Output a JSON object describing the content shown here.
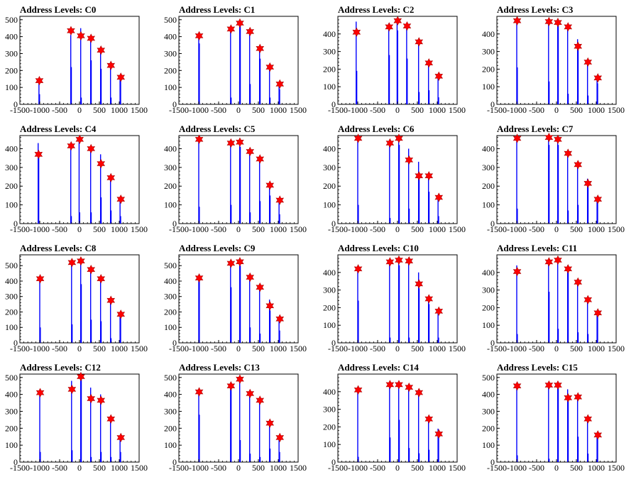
{
  "figure": {
    "colors": {
      "bar": "#0000ff",
      "marker": "#ff0000",
      "axis": "#000000"
    }
  },
  "chart_data": [
    {
      "type": "bar",
      "title": "Address Levels: C0",
      "xlim": [
        -1500,
        1500
      ],
      "ylim": [
        0,
        520
      ],
      "yticks": [
        0,
        100,
        200,
        300,
        400,
        500
      ],
      "xticks": [
        -1500,
        -1000,
        -500,
        0,
        500,
        1000,
        1500
      ],
      "x": [
        -1020,
        -1005,
        -220,
        -205,
        30,
        45,
        280,
        295,
        530,
        545,
        780,
        795,
        1020,
        1035
      ],
      "values": [
        150,
        60,
        410,
        220,
        450,
        40,
        400,
        260,
        340,
        210,
        230,
        40,
        170,
        150
      ],
      "markers": {
        "x": [
          -1010,
          -215,
          35,
          290,
          540,
          790,
          1040
        ],
        "y": [
          140,
          435,
          405,
          390,
          320,
          230,
          160
        ]
      }
    },
    {
      "type": "bar",
      "title": "Address Levels: C1",
      "xlim": [
        -1500,
        1500
      ],
      "ylim": [
        0,
        520
      ],
      "yticks": [
        0,
        100,
        200,
        300,
        400,
        500
      ],
      "xticks": [
        -1500,
        -1000,
        -500,
        0,
        500,
        1000,
        1500
      ],
      "x": [
        -1000,
        -985,
        -200,
        -185,
        30,
        45,
        280,
        295,
        530,
        545,
        780,
        795,
        1020,
        1035
      ],
      "values": [
        410,
        360,
        450,
        40,
        500,
        480,
        430,
        120,
        340,
        270,
        220,
        40,
        130,
        90
      ],
      "markers": {
        "x": [
          -990,
          -190,
          35,
          290,
          540,
          790,
          1040
        ],
        "y": [
          405,
          445,
          480,
          430,
          330,
          220,
          120
        ]
      }
    },
    {
      "type": "bar",
      "title": "Address Levels: C2",
      "xlim": [
        -1500,
        1500
      ],
      "ylim": [
        0,
        500
      ],
      "yticks": [
        0,
        100,
        200,
        300,
        400
      ],
      "xticks": [
        -1500,
        -1000,
        -500,
        0,
        500,
        1000,
        1500
      ],
      "x": [
        -1040,
        -1025,
        -220,
        -205,
        -10,
        5,
        230,
        245,
        530,
        545,
        780,
        795,
        1020,
        1035
      ],
      "values": [
        470,
        190,
        460,
        280,
        490,
        420,
        450,
        260,
        360,
        70,
        230,
        80,
        160,
        40
      ],
      "markers": {
        "x": [
          -1030,
          -210,
          5,
          240,
          540,
          790,
          1040
        ],
        "y": [
          410,
          440,
          475,
          445,
          355,
          235,
          160
        ]
      }
    },
    {
      "type": "bar",
      "title": "Address Levels: C3",
      "xlim": [
        -1500,
        1500
      ],
      "ylim": [
        0,
        500
      ],
      "yticks": [
        0,
        100,
        200,
        300,
        400
      ],
      "xticks": [
        -1500,
        -1000,
        -500,
        0,
        500,
        1000,
        1500
      ],
      "x": [
        -1000,
        -985,
        -200,
        -185,
        30,
        45,
        280,
        295,
        530,
        545,
        780,
        795,
        1020,
        1035
      ],
      "values": [
        480,
        210,
        470,
        130,
        480,
        460,
        450,
        60,
        370,
        310,
        240,
        50,
        150,
        120
      ],
      "markers": {
        "x": [
          -990,
          -190,
          35,
          290,
          540,
          790,
          1040
        ],
        "y": [
          475,
          470,
          465,
          440,
          330,
          240,
          150
        ]
      }
    },
    {
      "type": "bar",
      "title": "Address Levels: C4",
      "xlim": [
        -1500,
        1500
      ],
      "ylim": [
        0,
        470
      ],
      "yticks": [
        0,
        100,
        200,
        300,
        400
      ],
      "xticks": [
        -1500,
        -1000,
        -500,
        0,
        500,
        1000,
        1500
      ],
      "x": [
        -1040,
        -1025,
        -220,
        -205,
        -10,
        5,
        280,
        295,
        530,
        545,
        780,
        795,
        1020,
        1035
      ],
      "values": [
        430,
        360,
        420,
        40,
        450,
        60,
        410,
        60,
        370,
        140,
        250,
        70,
        130,
        40
      ],
      "markers": {
        "x": [
          -1030,
          -210,
          5,
          290,
          540,
          790,
          1040
        ],
        "y": [
          370,
          415,
          450,
          400,
          320,
          245,
          130
        ]
      }
    },
    {
      "type": "bar",
      "title": "Address Levels: C5",
      "xlim": [
        -1500,
        1500
      ],
      "ylim": [
        0,
        470
      ],
      "yticks": [
        0,
        100,
        200,
        300,
        400
      ],
      "xticks": [
        -1500,
        -1000,
        -500,
        0,
        500,
        1000,
        1500
      ],
      "x": [
        -1000,
        -985,
        -200,
        -185,
        30,
        45,
        280,
        295,
        530,
        545,
        780,
        795,
        1020,
        1035
      ],
      "values": [
        460,
        90,
        440,
        100,
        440,
        410,
        390,
        60,
        350,
        120,
        200,
        150,
        130,
        50
      ],
      "markers": {
        "x": [
          -990,
          -190,
          35,
          290,
          540,
          790,
          1040
        ],
        "y": [
          450,
          430,
          435,
          385,
          345,
          205,
          125
        ]
      }
    },
    {
      "type": "bar",
      "title": "Address Levels: C6",
      "xlim": [
        -1500,
        1500
      ],
      "ylim": [
        0,
        470
      ],
      "yticks": [
        0,
        100,
        200,
        300,
        400
      ],
      "xticks": [
        -1500,
        -1000,
        -500,
        0,
        500,
        1000,
        1500
      ],
      "x": [
        -1000,
        -985,
        -200,
        -185,
        30,
        45,
        280,
        295,
        530,
        545,
        780,
        795,
        1020,
        1035
      ],
      "values": [
        460,
        100,
        440,
        30,
        460,
        420,
        400,
        80,
        330,
        250,
        260,
        170,
        140,
        40
      ],
      "markers": {
        "x": [
          -990,
          -190,
          35,
          290,
          540,
          790,
          1040
        ],
        "y": [
          455,
          430,
          455,
          340,
          255,
          255,
          140
        ]
      }
    },
    {
      "type": "bar",
      "title": "Address Levels: C7",
      "xlim": [
        -1500,
        1500
      ],
      "ylim": [
        0,
        470
      ],
      "yticks": [
        0,
        100,
        200,
        300,
        400
      ],
      "xticks": [
        -1500,
        -1000,
        -500,
        0,
        500,
        1000,
        1500
      ],
      "x": [
        -1000,
        -985,
        -200,
        -185,
        30,
        45,
        280,
        295,
        530,
        545,
        780,
        795,
        1020,
        1035
      ],
      "values": [
        460,
        80,
        460,
        420,
        440,
        420,
        380,
        70,
        320,
        100,
        240,
        220,
        130,
        110
      ],
      "markers": {
        "x": [
          -990,
          -190,
          35,
          290,
          540,
          790,
          1040
        ],
        "y": [
          455,
          460,
          450,
          375,
          315,
          215,
          130
        ]
      }
    },
    {
      "type": "bar",
      "title": "Address Levels: C8",
      "xlim": [
        -1500,
        1500
      ],
      "ylim": [
        0,
        570
      ],
      "yticks": [
        0,
        100,
        200,
        300,
        400,
        500
      ],
      "xticks": [
        -1500,
        -1000,
        -500,
        0,
        500,
        1000,
        1500
      ],
      "x": [
        -1000,
        -985,
        -200,
        -185,
        30,
        45,
        280,
        295,
        530,
        545,
        780,
        795,
        1020,
        1035
      ],
      "values": [
        430,
        100,
        530,
        120,
        540,
        380,
        480,
        150,
        420,
        140,
        280,
        30,
        190,
        160
      ],
      "markers": {
        "x": [
          -990,
          -190,
          35,
          290,
          540,
          790,
          1040
        ],
        "y": [
          415,
          520,
          530,
          475,
          415,
          275,
          185
        ]
      }
    },
    {
      "type": "bar",
      "title": "Address Levels: C9",
      "xlim": [
        -1500,
        1500
      ],
      "ylim": [
        0,
        570
      ],
      "yticks": [
        0,
        100,
        200,
        300,
        400,
        500
      ],
      "xticks": [
        -1500,
        -1000,
        -500,
        0,
        500,
        1000,
        1500
      ],
      "x": [
        -1000,
        -985,
        -200,
        -185,
        30,
        45,
        280,
        295,
        530,
        545,
        780,
        795,
        1020,
        1035
      ],
      "values": [
        430,
        410,
        520,
        360,
        530,
        500,
        440,
        100,
        370,
        60,
        280,
        210,
        160,
        80
      ],
      "markers": {
        "x": [
          -990,
          -190,
          35,
          290,
          540,
          790,
          1040
        ],
        "y": [
          420,
          515,
          525,
          425,
          360,
          240,
          155
        ]
      }
    },
    {
      "type": "bar",
      "title": "Address Levels: C10",
      "xlim": [
        -1500,
        1500
      ],
      "ylim": [
        0,
        500
      ],
      "yticks": [
        0,
        100,
        200,
        300,
        400
      ],
      "xticks": [
        -1500,
        -1000,
        -500,
        0,
        500,
        1000,
        1500
      ],
      "x": [
        -1000,
        -985,
        -200,
        -185,
        30,
        45,
        280,
        295,
        530,
        545,
        780,
        795,
        1020,
        1035
      ],
      "values": [
        420,
        240,
        460,
        30,
        480,
        440,
        460,
        30,
        400,
        310,
        250,
        220,
        180,
        30
      ],
      "markers": {
        "x": [
          -990,
          -190,
          35,
          290,
          540,
          790,
          1040
        ],
        "y": [
          420,
          460,
          470,
          465,
          335,
          250,
          180
        ]
      }
    },
    {
      "type": "bar",
      "title": "Address Levels: C11",
      "xlim": [
        -1500,
        1500
      ],
      "ylim": [
        0,
        500
      ],
      "yticks": [
        0,
        100,
        200,
        300,
        400
      ],
      "xticks": [
        -1500,
        -1000,
        -500,
        0,
        500,
        1000,
        1500
      ],
      "x": [
        -1000,
        -985,
        -200,
        -185,
        30,
        45,
        280,
        295,
        530,
        545,
        780,
        795,
        1020,
        1035
      ],
      "values": [
        440,
        50,
        470,
        290,
        480,
        80,
        440,
        420,
        350,
        60,
        260,
        50,
        170,
        150
      ],
      "markers": {
        "x": [
          -990,
          -190,
          35,
          290,
          540,
          790,
          1040
        ],
        "y": [
          405,
          460,
          470,
          420,
          345,
          245,
          170
        ]
      }
    },
    {
      "type": "bar",
      "title": "Address Levels: C12",
      "xlim": [
        -1500,
        1500
      ],
      "ylim": [
        0,
        520
      ],
      "yticks": [
        0,
        100,
        200,
        300,
        400,
        500
      ],
      "xticks": [
        -1500,
        -1000,
        -500,
        0,
        500,
        1000,
        1500
      ],
      "x": [
        -1000,
        -985,
        -200,
        -185,
        30,
        45,
        280,
        295,
        530,
        545,
        780,
        795,
        1020,
        1035
      ],
      "values": [
        420,
        60,
        480,
        70,
        510,
        490,
        440,
        30,
        400,
        60,
        260,
        30,
        150,
        60
      ],
      "markers": {
        "x": [
          -990,
          -190,
          35,
          290,
          540,
          790,
          1040
        ],
        "y": [
          410,
          430,
          505,
          375,
          365,
          255,
          145
        ]
      }
    },
    {
      "type": "bar",
      "title": "Address Levels: C13",
      "xlim": [
        -1500,
        1500
      ],
      "ylim": [
        0,
        520
      ],
      "yticks": [
        0,
        100,
        200,
        300,
        400,
        500
      ],
      "xticks": [
        -1500,
        -1000,
        -500,
        0,
        500,
        1000,
        1500
      ],
      "x": [
        -1000,
        -985,
        -200,
        -185,
        30,
        45,
        280,
        295,
        530,
        545,
        780,
        795,
        1020,
        1035
      ],
      "values": [
        420,
        280,
        460,
        450,
        500,
        130,
        420,
        50,
        370,
        30,
        220,
        80,
        150,
        60
      ],
      "markers": {
        "x": [
          -990,
          -190,
          35,
          290,
          540,
          790,
          1040
        ],
        "y": [
          415,
          450,
          490,
          405,
          365,
          230,
          145
        ]
      }
    },
    {
      "type": "bar",
      "title": "Address Levels: C14",
      "xlim": [
        -1500,
        1500
      ],
      "ylim": [
        0,
        500
      ],
      "yticks": [
        0,
        100,
        200,
        300,
        400
      ],
      "xticks": [
        -1500,
        -1000,
        -500,
        0,
        500,
        1000,
        1500
      ],
      "x": [
        -1000,
        -985,
        -200,
        -185,
        30,
        45,
        280,
        295,
        530,
        545,
        780,
        795,
        1020,
        1035
      ],
      "values": [
        420,
        30,
        450,
        140,
        450,
        240,
        430,
        80,
        400,
        50,
        250,
        70,
        190,
        170
      ],
      "markers": {
        "x": [
          -990,
          -190,
          35,
          290,
          540,
          790,
          1040
        ],
        "y": [
          410,
          440,
          440,
          425,
          395,
          245,
          160
        ]
      }
    },
    {
      "type": "bar",
      "title": "Address Levels: C15",
      "xlim": [
        -1500,
        1500
      ],
      "ylim": [
        0,
        520
      ],
      "yticks": [
        0,
        100,
        200,
        300,
        400,
        500
      ],
      "xticks": [
        -1500,
        -1000,
        -500,
        0,
        500,
        1000,
        1500
      ],
      "x": [
        -1000,
        -985,
        -200,
        -185,
        30,
        45,
        280,
        295,
        530,
        545,
        780,
        795,
        1020,
        1035
      ],
      "values": [
        450,
        40,
        460,
        20,
        460,
        440,
        430,
        370,
        390,
        150,
        260,
        50,
        170,
        150
      ],
      "markers": {
        "x": [
          -990,
          -190,
          35,
          290,
          540,
          790,
          1040
        ],
        "y": [
          450,
          455,
          455,
          380,
          385,
          255,
          160
        ]
      }
    }
  ]
}
